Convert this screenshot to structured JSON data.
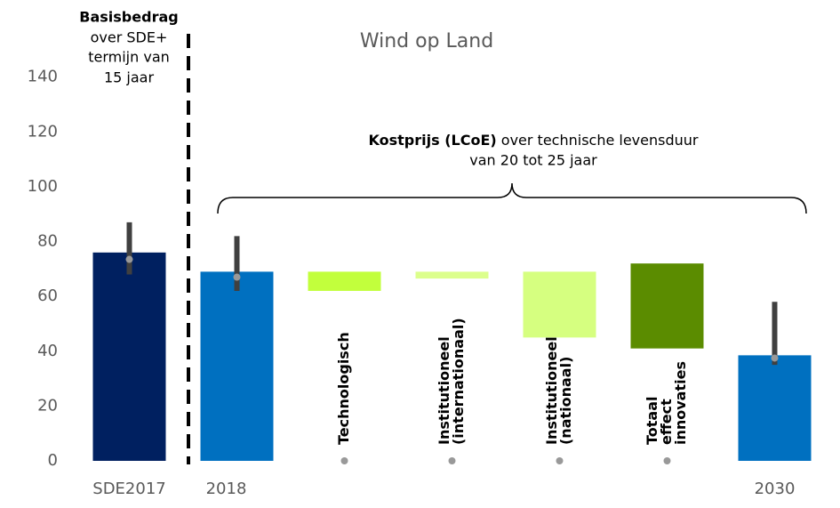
{
  "chart_data": {
    "type": "floating_bar",
    "title": "Wind op Land",
    "categories": [
      "SDE2017",
      "2018",
      null,
      null,
      null,
      null,
      "2030"
    ],
    "series": [
      {
        "values": [
          [
            0,
            76
          ],
          [
            0,
            69
          ],
          [
            62,
            69
          ],
          [
            66.5,
            69
          ],
          [
            45,
            69
          ],
          [
            41,
            72
          ],
          [
            0,
            38.5
          ]
        ],
        "colors": [
          "#002060",
          "#0070c0",
          "#c2ff3c",
          "#dcff8c",
          "#d6ff80",
          "#5b8c00",
          "#0070c0"
        ],
        "points": [
          73.5,
          67,
          0,
          0,
          0,
          0,
          37.5
        ],
        "error_ranges": [
          [
            68,
            87
          ],
          [
            62,
            82
          ],
          null,
          null,
          null,
          null,
          [
            35,
            58
          ]
        ]
      }
    ],
    "bar_labels": [
      null,
      null,
      [
        "Technologisch"
      ],
      [
        "Institutioneel",
        "(internationaal)"
      ],
      [
        "Institutioneel",
        "(nationaal)"
      ],
      [
        "Totaal",
        "effect",
        "innovaties"
      ],
      null
    ],
    "annotations": {
      "basis": [
        "Basisbedrag",
        "over SDE+",
        "termijn van",
        "15 jaar"
      ],
      "kostprijs_bold": "Kostprijs (LCoE)",
      "kostprijs": [
        "over technische levensduur",
        "van 20 tot 25 jaar"
      ]
    },
    "ylim": [
      0,
      160
    ],
    "yticks": [
      0,
      20,
      40,
      60,
      80,
      100,
      120,
      140
    ],
    "grid": false
  }
}
